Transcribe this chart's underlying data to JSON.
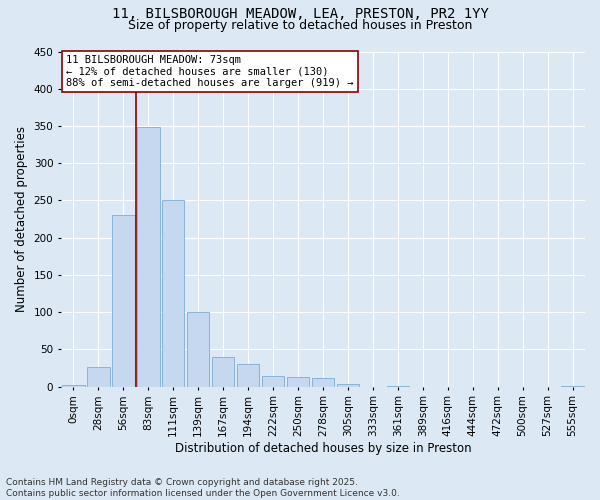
{
  "title_line1": "11, BILSBOROUGH MEADOW, LEA, PRESTON, PR2 1YY",
  "title_line2": "Size of property relative to detached houses in Preston",
  "xlabel": "Distribution of detached houses by size in Preston",
  "ylabel": "Number of detached properties",
  "bar_color": "#c5d8ef",
  "bar_edge_color": "#7aadd4",
  "categories": [
    "0sqm",
    "28sqm",
    "56sqm",
    "83sqm",
    "111sqm",
    "139sqm",
    "167sqm",
    "194sqm",
    "222sqm",
    "250sqm",
    "278sqm",
    "305sqm",
    "333sqm",
    "361sqm",
    "389sqm",
    "416sqm",
    "444sqm",
    "472sqm",
    "500sqm",
    "527sqm",
    "555sqm"
  ],
  "values": [
    2,
    26,
    230,
    348,
    250,
    100,
    40,
    30,
    15,
    13,
    11,
    4,
    0,
    1,
    0,
    0,
    0,
    0,
    0,
    0,
    1
  ],
  "ylim": [
    0,
    450
  ],
  "yticks": [
    0,
    50,
    100,
    150,
    200,
    250,
    300,
    350,
    400,
    450
  ],
  "vline_x": 2.5,
  "vline_color": "#8b0000",
  "annotation_text": "11 BILSBOROUGH MEADOW: 73sqm\n← 12% of detached houses are smaller (130)\n88% of semi-detached houses are larger (919) →",
  "annotation_box_color": "#ffffff",
  "annotation_box_edge": "#8b0000",
  "footer_text": "Contains HM Land Registry data © Crown copyright and database right 2025.\nContains public sector information licensed under the Open Government Licence v3.0.",
  "background_color": "#dce9f5",
  "plot_background": "#dce9f5",
  "grid_color": "#ffffff",
  "title_fontsize": 10,
  "subtitle_fontsize": 9,
  "axis_label_fontsize": 8.5,
  "tick_fontsize": 7.5,
  "annotation_fontsize": 7.5,
  "footer_fontsize": 6.5
}
